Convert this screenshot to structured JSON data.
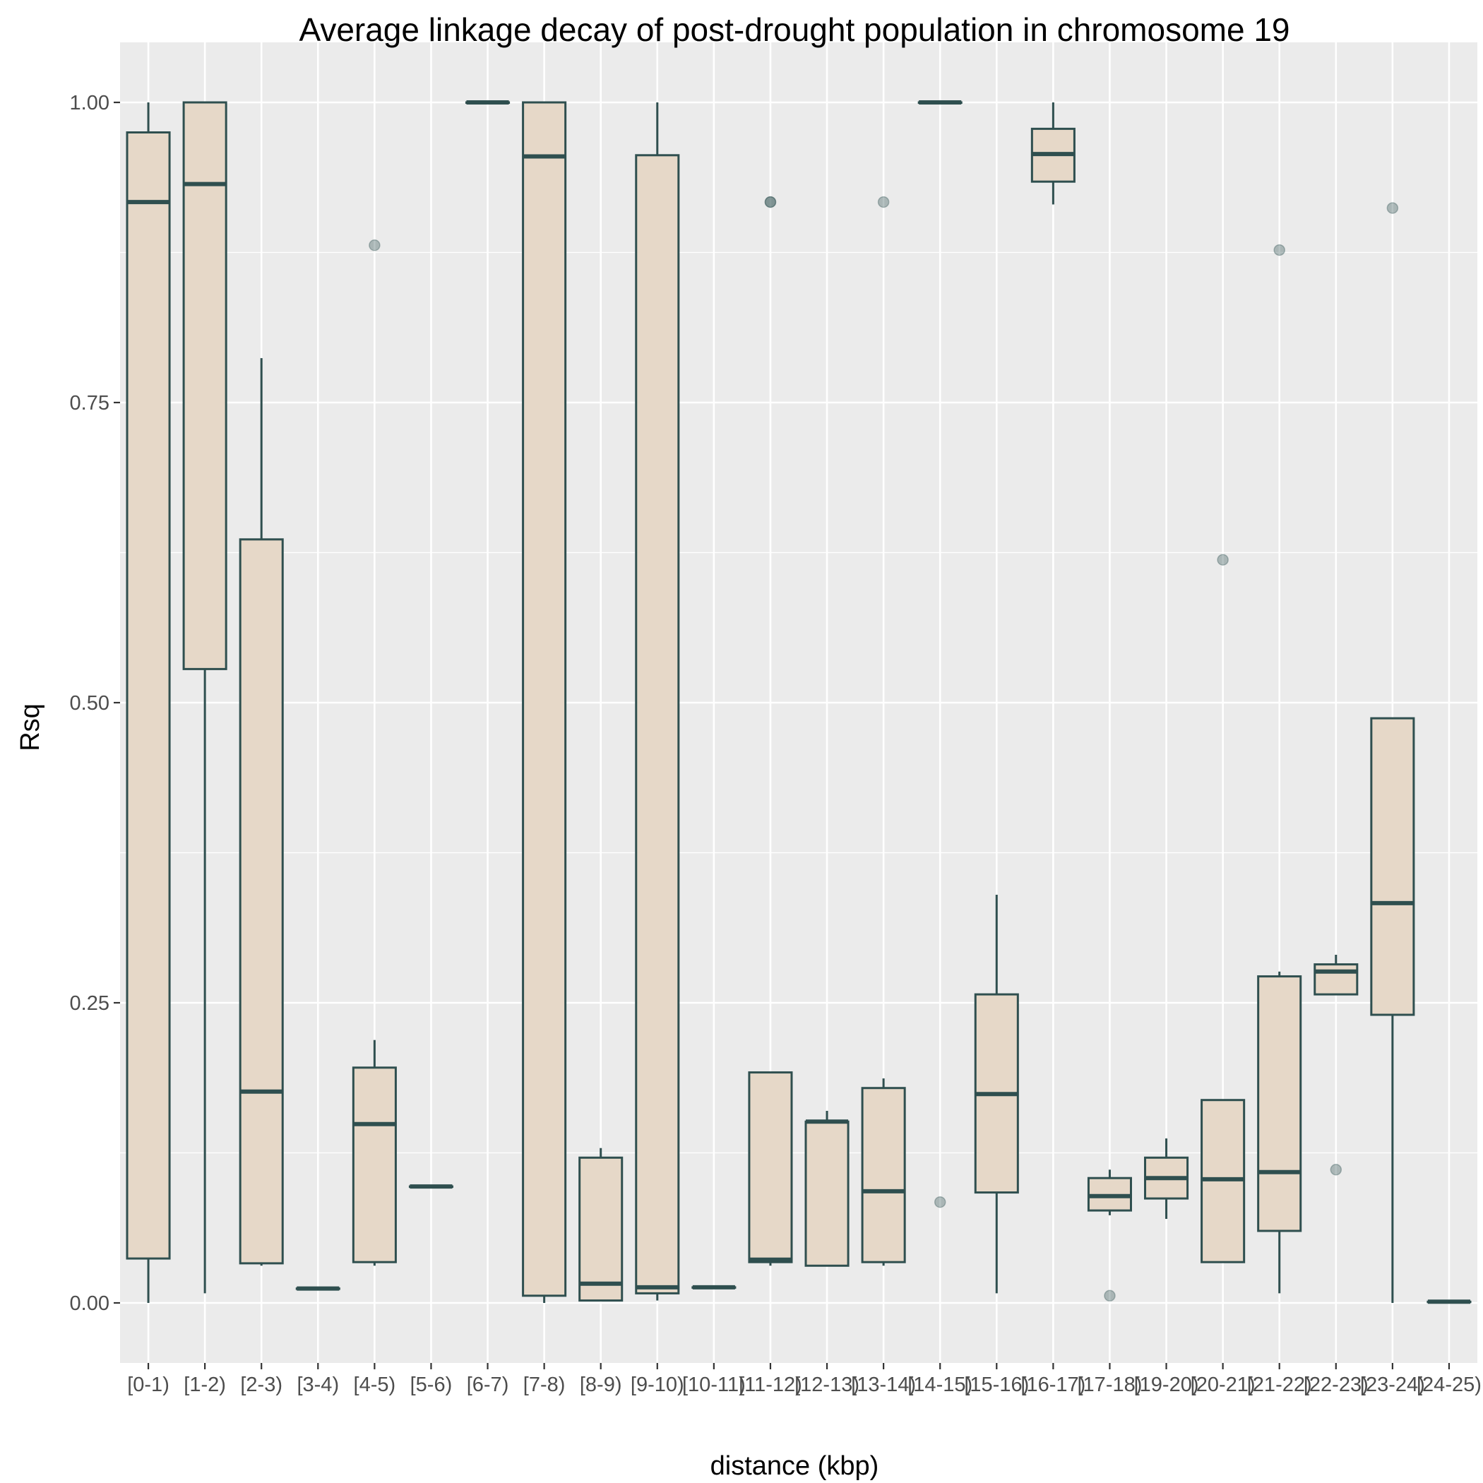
{
  "chart_data": {
    "type": "boxplot",
    "title": "Average linkage decay of post-drought population in chromosome  19",
    "xlabel": "distance (kbp)",
    "ylabel": "Rsq",
    "categories": [
      "[0-1)",
      "[1-2)",
      "[2-3)",
      "[3-4)",
      "[4-5)",
      "[5-6)",
      "[6-7)",
      "[7-8)",
      "[8-9)",
      "[9-10)",
      "[10-11)",
      "[11-12)",
      "[12-13)",
      "[13-14)",
      "[14-15)",
      "[15-16)",
      "[16-17)",
      "[17-18)",
      "[19-20)",
      "[20-21)",
      "[21-22)",
      "[22-23)",
      "[23-24)",
      "[24-25)"
    ],
    "ylim": [
      -0.05,
      1.05
    ],
    "yticks": [
      0,
      0.25,
      0.5,
      0.75,
      1.0
    ],
    "ytick_labels": [
      "0.00",
      "0.25",
      "0.50",
      "0.75",
      "1.00"
    ],
    "grid": true,
    "colors": {
      "panel_bg": "#ebebeb",
      "grid": "#ffffff",
      "box_fill": "#e6d8c8",
      "box_stroke": "#2f4f4f",
      "outlier": "#a9b8b5"
    },
    "boxes": [
      {
        "category": "[0-1)",
        "min": 0.0,
        "q1": 0.037,
        "median": 0.917,
        "q3": 0.975,
        "max": 1.0,
        "outliers": []
      },
      {
        "category": "[1-2)",
        "min": 0.008,
        "q1": 0.528,
        "median": 0.932,
        "q3": 1.0,
        "max": 1.0,
        "outliers": []
      },
      {
        "category": "[2-3)",
        "min": 0.031,
        "q1": 0.033,
        "median": 0.176,
        "q3": 0.636,
        "max": 0.787,
        "outliers": []
      },
      {
        "category": "[3-4)",
        "min": 0.012,
        "q1": 0.012,
        "median": 0.012,
        "q3": 0.012,
        "max": 0.012,
        "outliers": []
      },
      {
        "category": "[4-5)",
        "min": 0.031,
        "q1": 0.034,
        "median": 0.149,
        "q3": 0.196,
        "max": 0.219,
        "outliers": [
          0.881
        ]
      },
      {
        "category": "[5-6)",
        "min": 0.097,
        "q1": 0.097,
        "median": 0.097,
        "q3": 0.097,
        "max": 0.097,
        "outliers": []
      },
      {
        "category": "[6-7)",
        "min": 1.0,
        "q1": 1.0,
        "median": 1.0,
        "q3": 1.0,
        "max": 1.0,
        "outliers": []
      },
      {
        "category": "[7-8)",
        "min": 0.0,
        "q1": 0.006,
        "median": 0.955,
        "q3": 1.0,
        "max": 1.0,
        "outliers": []
      },
      {
        "category": "[8-9)",
        "min": 0.002,
        "q1": 0.002,
        "median": 0.016,
        "q3": 0.121,
        "max": 0.129,
        "outliers": []
      },
      {
        "category": "[9-10)",
        "min": 0.002,
        "q1": 0.008,
        "median": 0.013,
        "q3": 0.956,
        "max": 1.0,
        "outliers": []
      },
      {
        "category": "[10-11)",
        "min": 0.013,
        "q1": 0.013,
        "median": 0.013,
        "q3": 0.013,
        "max": 0.013,
        "outliers": []
      },
      {
        "category": "[11-12)",
        "min": 0.031,
        "q1": 0.034,
        "median": 0.036,
        "q3": 0.192,
        "max": 0.192,
        "outliers": [
          0.917,
          0.917
        ]
      },
      {
        "category": "[12-13)",
        "min": 0.031,
        "q1": 0.031,
        "median": 0.151,
        "q3": 0.151,
        "max": 0.16,
        "outliers": []
      },
      {
        "category": "[13-14)",
        "min": 0.031,
        "q1": 0.034,
        "median": 0.093,
        "q3": 0.179,
        "max": 0.187,
        "outliers": [
          0.917
        ]
      },
      {
        "category": "[14-15)",
        "min": 1.0,
        "q1": 1.0,
        "median": 1.0,
        "q3": 1.0,
        "max": 1.0,
        "outliers": [
          0.084
        ]
      },
      {
        "category": "[15-16)",
        "min": 0.008,
        "q1": 0.092,
        "median": 0.174,
        "q3": 0.257,
        "max": 0.34,
        "outliers": []
      },
      {
        "category": "[16-17)",
        "min": 0.915,
        "q1": 0.934,
        "median": 0.957,
        "q3": 0.978,
        "max": 1.0,
        "outliers": []
      },
      {
        "category": "[17-18)",
        "min": 0.073,
        "q1": 0.077,
        "median": 0.089,
        "q3": 0.104,
        "max": 0.111,
        "outliers": [
          0.006
        ]
      },
      {
        "category": "[19-20)",
        "min": 0.07,
        "q1": 0.087,
        "median": 0.104,
        "q3": 0.121,
        "max": 0.137,
        "outliers": []
      },
      {
        "category": "[20-21)",
        "min": 0.034,
        "q1": 0.034,
        "median": 0.103,
        "q3": 0.169,
        "max": 0.169,
        "outliers": [
          0.619
        ]
      },
      {
        "category": "[21-22)",
        "min": 0.008,
        "q1": 0.06,
        "median": 0.109,
        "q3": 0.272,
        "max": 0.276,
        "outliers": [
          0.877
        ]
      },
      {
        "category": "[22-23)",
        "min": 0.257,
        "q1": 0.257,
        "median": 0.276,
        "q3": 0.282,
        "max": 0.29,
        "outliers": [
          0.111
        ]
      },
      {
        "category": "[23-24)",
        "min": 0.0,
        "q1": 0.24,
        "median": 0.333,
        "q3": 0.487,
        "max": 0.487,
        "outliers": [
          0.912
        ]
      },
      {
        "category": "[24-25)",
        "min": 0.001,
        "q1": 0.001,
        "median": 0.001,
        "q3": 0.001,
        "max": 0.001,
        "outliers": []
      }
    ]
  }
}
